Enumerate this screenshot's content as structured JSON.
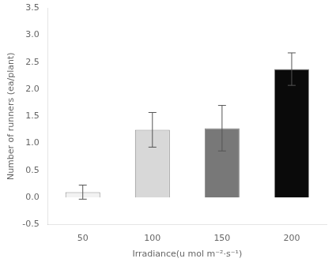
{
  "chart_data": {
    "type": "bar",
    "categories": [
      "50",
      "100",
      "150",
      "200"
    ],
    "values": [
      0.1,
      1.25,
      1.28,
      2.37
    ],
    "errors": [
      0.13,
      0.32,
      0.42,
      0.3
    ],
    "colors": [
      "#f2f2f2",
      "#d8d8d8",
      "#787878",
      "#0a0a0a"
    ],
    "xlabel": "Irradiance(u mol m⁻²·s⁻¹)",
    "ylabel": "Number of runners (ea/plant)",
    "ylim": [
      -0.5,
      3.5
    ],
    "yticks": [
      -0.5,
      {
        "value": 0.0,
        "label": "0.0"
      },
      0.5,
      {
        "value": 1.0,
        "label": "1.0"
      },
      1.5,
      {
        "value": 2.0,
        "label": "2.0"
      },
      2.5,
      {
        "value": 3.0,
        "label": "3.0"
      },
      3.5
    ],
    "grid": false
  }
}
